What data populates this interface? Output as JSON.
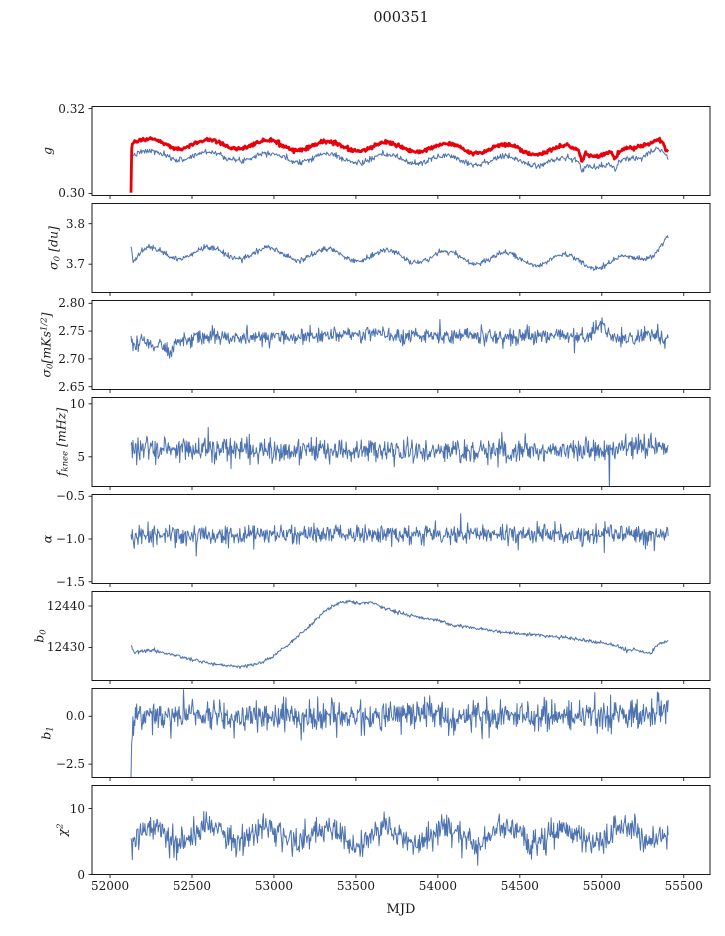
{
  "title": "000351",
  "x_axis": {
    "label": "MJD",
    "xlim": [
      51890,
      55660
    ],
    "tick_values": [
      52000,
      52500,
      53000,
      53500,
      54000,
      54500,
      55000,
      55500
    ],
    "tick_labels": [
      "52000",
      "52500",
      "53000",
      "53500",
      "54000",
      "54500",
      "55000",
      "55500"
    ],
    "data_range": [
      52128,
      55405
    ]
  },
  "colors": {
    "blue": "#4c72b0",
    "red": "#e8000b",
    "axis": "#000000",
    "text": "#1a1a1a"
  },
  "chart_data": [
    {
      "id": "g",
      "type": "line",
      "ylabel": "g",
      "ylim": [
        0.2995,
        0.3205
      ],
      "ytick_values": [
        0.3,
        0.32
      ],
      "ytick_labels": [
        "0.30",
        "0.32"
      ],
      "series": [
        {
          "name": "g-thin",
          "color": "#4c72b0",
          "width": 1.0,
          "n": 750,
          "noise": 0.00035,
          "sine": {
            "amp": 0.001,
            "period": 362,
            "x0": 52150
          },
          "keypoints": [
            [
              52128,
              0.3035
            ],
            [
              52133,
              0.3092
            ],
            [
              52200,
              0.309
            ],
            [
              52500,
              0.3089
            ],
            [
              53000,
              0.3086
            ],
            [
              53500,
              0.3082
            ],
            [
              54000,
              0.308
            ],
            [
              54400,
              0.3077
            ],
            [
              54700,
              0.3075
            ],
            [
              54860,
              0.3073
            ],
            [
              54878,
              0.3052
            ],
            [
              54900,
              0.3072
            ],
            [
              55050,
              0.307
            ],
            [
              55080,
              0.305
            ],
            [
              55110,
              0.3065
            ],
            [
              55200,
              0.3078
            ],
            [
              55280,
              0.3102
            ],
            [
              55340,
              0.3118
            ],
            [
              55370,
              0.3108
            ],
            [
              55400,
              0.3082
            ]
          ]
        },
        {
          "name": "g-thick",
          "color": "#e8000b",
          "width": 2.8,
          "n": 750,
          "noise": 0.00022,
          "sine": {
            "amp": 0.0011,
            "period": 362,
            "x0": 52150
          },
          "keypoints": [
            [
              52128,
              0.3005
            ],
            [
              52133,
              0.3122
            ],
            [
              52200,
              0.3118
            ],
            [
              52500,
              0.3116
            ],
            [
              53000,
              0.3114
            ],
            [
              53500,
              0.311
            ],
            [
              54000,
              0.3108
            ],
            [
              54400,
              0.3104
            ],
            [
              54700,
              0.3102
            ],
            [
              54860,
              0.31
            ],
            [
              54878,
              0.3076
            ],
            [
              54900,
              0.31
            ],
            [
              55050,
              0.3098
            ],
            [
              55080,
              0.3075
            ],
            [
              55110,
              0.309
            ],
            [
              55200,
              0.3102
            ],
            [
              55280,
              0.3125
            ],
            [
              55340,
              0.3138
            ],
            [
              55370,
              0.3128
            ],
            [
              55400,
              0.3098
            ]
          ]
        }
      ]
    },
    {
      "id": "sigma0-du",
      "type": "line",
      "ylabel": "σ_{0} [du]",
      "ylim": [
        3.63,
        3.85
      ],
      "ytick_values": [
        3.7,
        3.8
      ],
      "ytick_labels": [
        "3.7",
        "3.8"
      ],
      "series": [
        {
          "name": "sigma0-du",
          "color": "#4c72b0",
          "width": 1.0,
          "n": 780,
          "noise": 0.0035,
          "sine": {
            "amp": 0.015,
            "period": 362,
            "x0": 52150
          },
          "keypoints": [
            [
              52128,
              3.752
            ],
            [
              52142,
              3.706
            ],
            [
              52200,
              3.726
            ],
            [
              52500,
              3.728
            ],
            [
              53000,
              3.726
            ],
            [
              53500,
              3.722
            ],
            [
              54000,
              3.718
            ],
            [
              54500,
              3.713
            ],
            [
              54800,
              3.709
            ],
            [
              55050,
              3.704
            ],
            [
              55200,
              3.706
            ],
            [
              55300,
              3.732
            ],
            [
              55400,
              3.772
            ]
          ]
        }
      ]
    },
    {
      "id": "sigma0-mks",
      "type": "line",
      "ylabel": "σ_{0}[mKs^{1/2}]",
      "ylim": [
        2.645,
        2.805
      ],
      "ytick_values": [
        2.65,
        2.7,
        2.75,
        2.8
      ],
      "ytick_labels": [
        "2.65",
        "2.70",
        "2.75",
        "2.80"
      ],
      "series": [
        {
          "name": "sigma0-mks",
          "color": "#4c72b0",
          "width": 1.0,
          "n": 820,
          "noise": 0.0075,
          "sine": null,
          "keypoints": [
            [
              52128,
              2.726
            ],
            [
              52200,
              2.732
            ],
            [
              52370,
              2.713
            ],
            [
              52420,
              2.737
            ],
            [
              53000,
              2.74
            ],
            [
              53400,
              2.744
            ],
            [
              54000,
              2.742
            ],
            [
              54500,
              2.74
            ],
            [
              54900,
              2.742
            ],
            [
              55010,
              2.762
            ],
            [
              55060,
              2.738
            ],
            [
              55200,
              2.736
            ],
            [
              55300,
              2.741
            ],
            [
              55400,
              2.74
            ]
          ]
        }
      ]
    },
    {
      "id": "fknee",
      "type": "line",
      "ylabel": "f_{knee} [mHz]",
      "ylim": [
        2.2,
        10.6
      ],
      "ytick_values": [
        5,
        10
      ],
      "ytick_labels": [
        "5",
        "10"
      ],
      "series": [
        {
          "name": "fknee",
          "color": "#4c72b0",
          "width": 1.0,
          "n": 850,
          "noise": 0.55,
          "sine": null,
          "spike": {
            "p": 0.04,
            "amp": 1.1
          },
          "keypoints": [
            [
              52128,
              5.9
            ],
            [
              52300,
              5.7
            ],
            [
              53000,
              5.6
            ],
            [
              54000,
              5.55
            ],
            [
              55000,
              5.6
            ],
            [
              55400,
              6.1
            ]
          ]
        }
      ]
    },
    {
      "id": "alpha",
      "type": "line",
      "ylabel": "α",
      "ylim": [
        -1.52,
        -0.48
      ],
      "ytick_values": [
        -0.5,
        -1.0,
        -1.5
      ],
      "ytick_labels": [
        "−0.5",
        "−1.0",
        "−1.5"
      ],
      "series": [
        {
          "name": "alpha",
          "color": "#4c72b0",
          "width": 1.0,
          "n": 850,
          "noise": 0.055,
          "sine": null,
          "spike": {
            "p": 0.03,
            "amp": 0.1
          },
          "keypoints": [
            [
              52128,
              -0.97
            ],
            [
              53000,
              -0.95
            ],
            [
              54000,
              -0.945
            ],
            [
              55400,
              -0.95
            ]
          ]
        }
      ]
    },
    {
      "id": "b0",
      "type": "line",
      "ylabel": "b_{0}",
      "ylim": [
        12422,
        12443.5
      ],
      "ytick_values": [
        12430,
        12440
      ],
      "ytick_labels": [
        "12430",
        "12440"
      ],
      "series": [
        {
          "name": "b0",
          "color": "#4c72b0",
          "width": 1.0,
          "n": 780,
          "noise": 0.22,
          "sine": null,
          "keypoints": [
            [
              52128,
              12430.5
            ],
            [
              52150,
              12428.8
            ],
            [
              52250,
              12429.3
            ],
            [
              52400,
              12428.2
            ],
            [
              52550,
              12426.6
            ],
            [
              52700,
              12425.6
            ],
            [
              52800,
              12425.3
            ],
            [
              52900,
              12426.0
            ],
            [
              53000,
              12428.0
            ],
            [
              53100,
              12431.0
            ],
            [
              53200,
              12434.5
            ],
            [
              53300,
              12438.5
            ],
            [
              53400,
              12440.8
            ],
            [
              53450,
              12441.2
            ],
            [
              53500,
              12440.6
            ],
            [
              53600,
              12440.9
            ],
            [
              53650,
              12439.8
            ],
            [
              53800,
              12438.0
            ],
            [
              53900,
              12437.2
            ],
            [
              54000,
              12436.6
            ],
            [
              54100,
              12435.2
            ],
            [
              54200,
              12434.8
            ],
            [
              54300,
              12434.3
            ],
            [
              54400,
              12433.6
            ],
            [
              54500,
              12433.3
            ],
            [
              54600,
              12433.0
            ],
            [
              54700,
              12432.6
            ],
            [
              54800,
              12432.3
            ],
            [
              54900,
              12431.7
            ],
            [
              55000,
              12431.2
            ],
            [
              55100,
              12430.3
            ],
            [
              55150,
              12429.2
            ],
            [
              55200,
              12429.6
            ],
            [
              55250,
              12428.8
            ],
            [
              55300,
              12428.6
            ],
            [
              55350,
              12431.0
            ],
            [
              55400,
              12431.6
            ]
          ]
        }
      ]
    },
    {
      "id": "b1",
      "type": "line",
      "ylabel": "b_{1}",
      "ylim": [
        -3.2,
        1.45
      ],
      "ytick_values": [
        0.0,
        -2.5
      ],
      "ytick_labels": [
        "0.0",
        "−2.5"
      ],
      "series": [
        {
          "name": "b1",
          "color": "#4c72b0",
          "width": 1.0,
          "n": 850,
          "noise": 0.42,
          "sine": null,
          "spike": {
            "p": 0.025,
            "amp": 0.8
          },
          "keypoints": [
            [
              52128,
              -2.55
            ],
            [
              52140,
              -0.35
            ],
            [
              52160,
              0.05
            ],
            [
              53000,
              0.0
            ],
            [
              54000,
              0.02
            ],
            [
              55000,
              0.0
            ],
            [
              55330,
              0.0
            ],
            [
              55348,
              1.15
            ],
            [
              55366,
              0.1
            ],
            [
              55400,
              0.35
            ]
          ]
        }
      ]
    },
    {
      "id": "chi2",
      "type": "line",
      "ylabel": "χ^{2}",
      "ylim": [
        0,
        13.5
      ],
      "ytick_values": [
        0,
        10
      ],
      "ytick_labels": [
        "0",
        "10"
      ],
      "series": [
        {
          "name": "chi2",
          "color": "#4c72b0",
          "width": 1.0,
          "n": 850,
          "noise": 1.05,
          "sine": {
            "amp": 1.25,
            "period": 362,
            "x0": 52150
          },
          "keypoints": [
            [
              52128,
              5.4
            ],
            [
              52250,
              6.2
            ],
            [
              53000,
              6.0
            ],
            [
              54000,
              5.9
            ],
            [
              55000,
              5.9
            ],
            [
              55400,
              6.5
            ]
          ]
        }
      ]
    }
  ]
}
